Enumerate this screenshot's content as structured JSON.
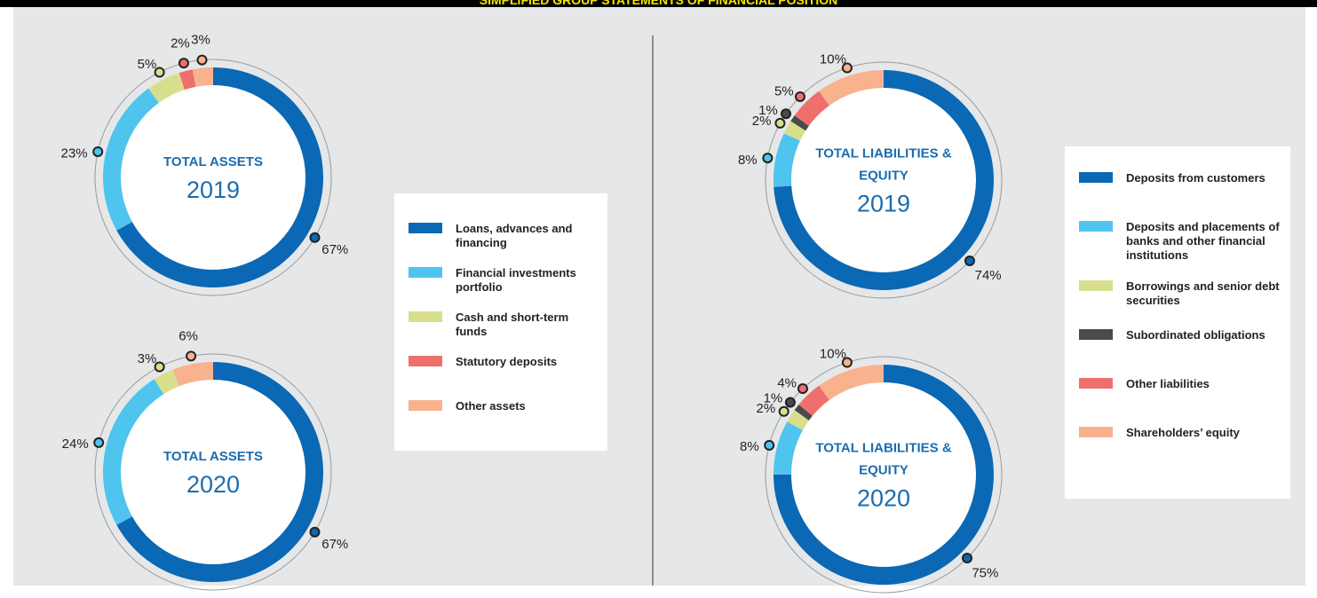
{
  "header": {
    "title": "SIMPLIFIED GROUP STATEMENTS OF FINANCIAL POSITION"
  },
  "chart_data": [
    {
      "type": "pie",
      "center_label": "TOTAL ASSETS",
      "categories": [
        "Loans, advances and financing",
        "Financial investments portfolio",
        "Cash and short-term funds",
        "Statutory deposits",
        "Other assets"
      ],
      "colors": [
        "#0a68b4",
        "#4ec4ee",
        "#d8df8c",
        "#ef6f6c",
        "#f8b28e"
      ],
      "series": [
        {
          "name": "2019",
          "values": [
            67,
            23,
            5,
            2,
            3
          ],
          "value_labels": [
            "67%",
            "23%",
            "5%",
            "2%",
            "3%"
          ]
        },
        {
          "name": "2020",
          "values": [
            67,
            24,
            3,
            null,
            6
          ],
          "value_labels": [
            "67%",
            "24%",
            "3%",
            null,
            "6%"
          ]
        }
      ]
    },
    {
      "type": "pie",
      "center_label": "TOTAL LIABILITIES & EQUITY",
      "categories": [
        "Deposits from customers",
        "Deposits and placements of banks and other financial institutions",
        "Borrowings and senior debt securities",
        "Subordinated obligations",
        "Other liabilities",
        "Shareholders’ equity"
      ],
      "colors": [
        "#0a68b4",
        "#4ec4ee",
        "#d8df8c",
        "#4a4a4c",
        "#ef6f6c",
        "#f8b28e"
      ],
      "series": [
        {
          "name": "2019",
          "values": [
            74,
            8,
            2,
            1,
            5,
            10
          ],
          "value_labels": [
            "74%",
            "8%",
            "2%",
            "1%",
            "5%",
            "10%"
          ]
        },
        {
          "name": "2020",
          "values": [
            75,
            8,
            2,
            1,
            4,
            10
          ],
          "value_labels": [
            "75%",
            "8%",
            "2%",
            "1%",
            "4%",
            "10%"
          ]
        }
      ]
    }
  ]
}
